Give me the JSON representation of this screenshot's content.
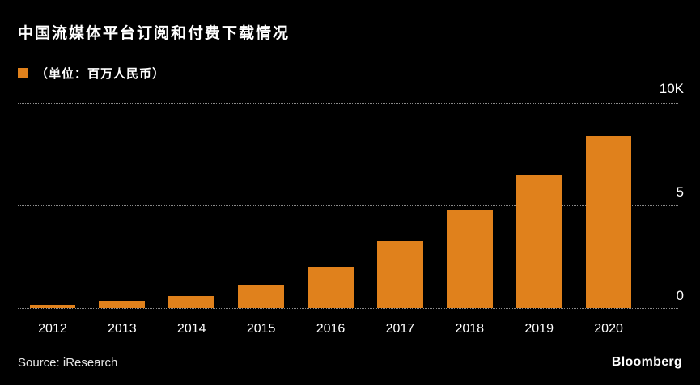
{
  "header": {
    "title": "中国流媒体平台订阅和付费下载情况"
  },
  "legend": {
    "label": "（单位：百万人民币）"
  },
  "chart_data": {
    "type": "bar",
    "title": "中国流媒体平台订阅和付费下载情况",
    "unit_label": "（单位：百万人民币）",
    "categories": [
      "2012",
      "2013",
      "2014",
      "2015",
      "2016",
      "2017",
      "2018",
      "2019",
      "2020"
    ],
    "values": [
      150,
      350,
      600,
      1150,
      2000,
      3250,
      4750,
      6500,
      8400
    ],
    "ylim": [
      0,
      10000
    ],
    "ytick_labels": [
      "10K",
      "5",
      "0"
    ],
    "ytick_values": [
      10000,
      5000,
      0
    ],
    "grid": "horizontal-dotted",
    "legend_position": "top-left",
    "bar_color": "#e0811c",
    "background_color": "#000000",
    "text_color": "#ffffff"
  },
  "footer": {
    "source": "Source: iResearch",
    "brand": "Bloomberg"
  }
}
